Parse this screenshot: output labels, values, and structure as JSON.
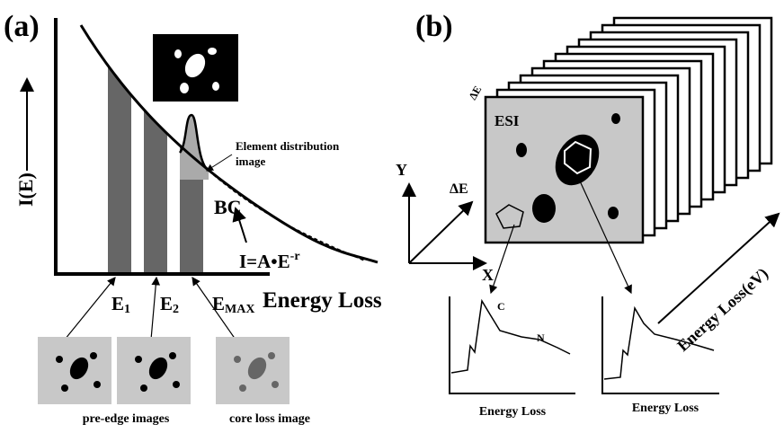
{
  "panel_a": {
    "label": "(a)",
    "y_axis": "I(E)",
    "edi_label": [
      "Element distribution",
      "image"
    ],
    "bc": "BC",
    "formula": {
      "base": "I=A•E",
      "exp": "-r"
    },
    "energies": [
      {
        "main": "E",
        "sub": "1"
      },
      {
        "main": "E",
        "sub": "2"
      },
      {
        "main": "E",
        "sub": "MAX"
      }
    ],
    "x_axis": "Energy Loss",
    "pre_edge": "pre-edge images",
    "core_loss": "core loss image"
  },
  "panel_b": {
    "label": "(b)",
    "delta_e_stack": "ΔE",
    "esi": "ESI",
    "axis_y": "Y",
    "axis_x": "X",
    "axis_de": "ΔE",
    "stack_axis": "Energy Loss(eV)",
    "peak_c": "C",
    "peak_n": "N",
    "spectrum_x": [
      "Energy Loss",
      "Energy Loss"
    ]
  }
}
